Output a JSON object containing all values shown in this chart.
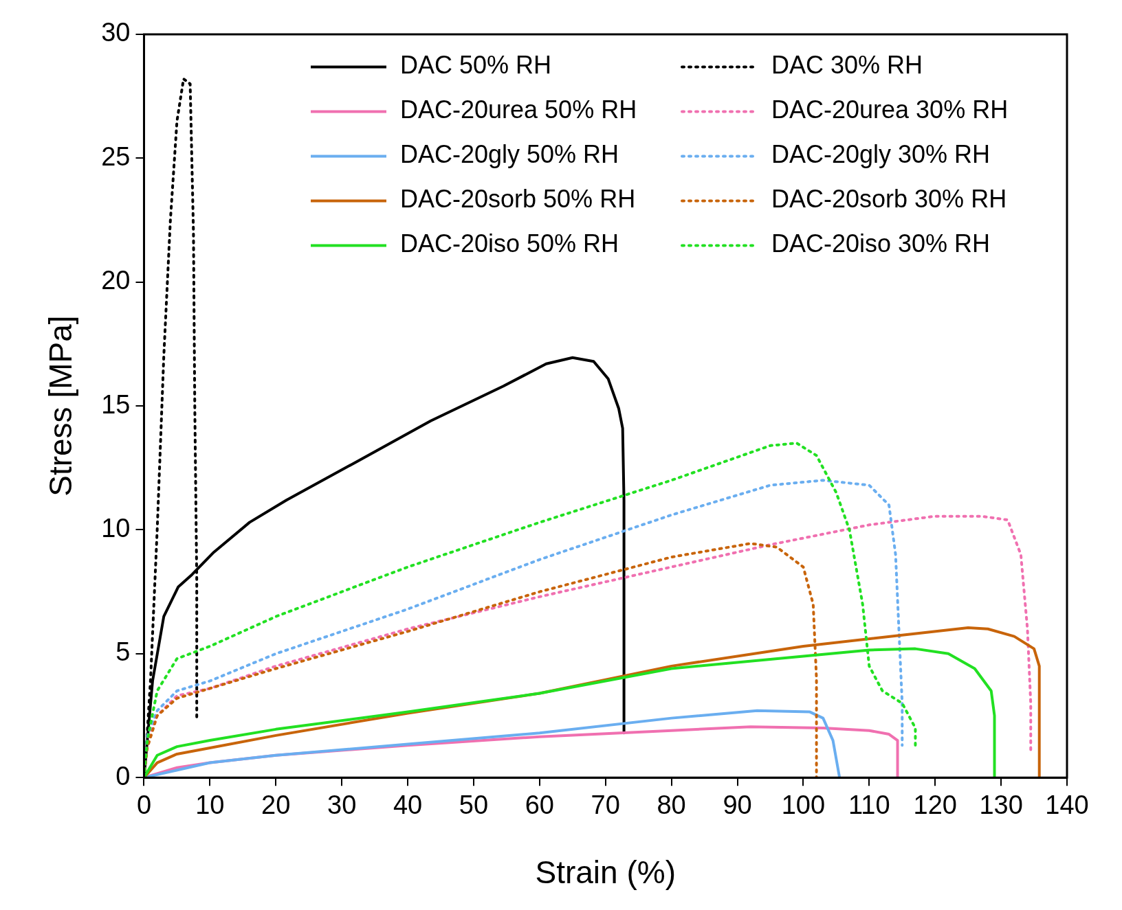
{
  "chart_data": {
    "type": "line",
    "xlabel": "Strain (%)",
    "ylabel": "Stress [MPa]",
    "xlim": [
      0,
      140
    ],
    "xticks": [
      0,
      10,
      20,
      30,
      40,
      50,
      60,
      70,
      80,
      90,
      100,
      110,
      120,
      130,
      140
    ],
    "ylim": [
      0,
      30
    ],
    "yticks": [
      0,
      5,
      10,
      15,
      20,
      25,
      30
    ],
    "grid": false,
    "legend": "top right",
    "marker": "none",
    "series": [
      {
        "name": "DAC 50% RH",
        "color": "#000000",
        "line_style": "solid",
        "x": [
          0,
          0.5,
          1.3,
          3,
          5.2,
          7.3,
          10.6,
          16,
          21.6,
          32.6,
          43.5,
          54.5,
          61,
          65,
          68.2,
          70.4,
          72,
          72.6,
          72.8,
          72.8
        ],
        "values": [
          0,
          1.5,
          3.9,
          6.5,
          7.7,
          8.2,
          9.1,
          10.3,
          11.2,
          12.8,
          14.4,
          15.8,
          16.7,
          16.95,
          16.8,
          16.1,
          14.9,
          14.1,
          11.2,
          1.8
        ]
      },
      {
        "name": "DAC 30% RH",
        "color": "#000000",
        "line_style": "dotted",
        "x": [
          0,
          0.3,
          1,
          2,
          3,
          4,
          5,
          6,
          7,
          7.5,
          7.7,
          8,
          8
        ],
        "values": [
          0,
          1,
          4,
          10,
          17,
          22.5,
          26.5,
          28.2,
          28,
          22,
          15,
          8,
          2.3
        ]
      },
      {
        "name": "DAC-20urea 50% RH",
        "color": "#f070b0",
        "line_style": "solid",
        "x": [
          0,
          5,
          10,
          20,
          40,
          60,
          80,
          92,
          103,
          110,
          113,
          114.3,
          114.3
        ],
        "values": [
          0,
          0.4,
          0.6,
          0.9,
          1.3,
          1.65,
          1.9,
          2.05,
          2,
          1.9,
          1.75,
          1.5,
          0
        ]
      },
      {
        "name": "DAC-20urea 30% RH",
        "color": "#f070b0",
        "line_style": "dotted",
        "x": [
          0,
          0.5,
          2,
          5,
          10,
          20,
          40,
          60,
          80,
          95,
          110,
          120,
          127,
          131,
          133,
          134,
          134.5,
          134.5
        ],
        "values": [
          0,
          1.5,
          2.5,
          3.3,
          3.6,
          4.5,
          6,
          7.3,
          8.5,
          9.4,
          10.2,
          10.55,
          10.55,
          10.4,
          9,
          6,
          3,
          1.1
        ]
      },
      {
        "name": "DAC-20gly 50% RH",
        "color": "#6aaef0",
        "line_style": "solid",
        "x": [
          0,
          10,
          20,
          40,
          60,
          80,
          93,
          101,
          103,
          104.5,
          105.5
        ],
        "values": [
          0,
          0.6,
          0.9,
          1.35,
          1.8,
          2.4,
          2.7,
          2.65,
          2.4,
          1.5,
          0
        ]
      },
      {
        "name": "DAC-20gly 30% RH",
        "color": "#6aaef0",
        "line_style": "dotted",
        "x": [
          0,
          0.5,
          2,
          5,
          10,
          20,
          40,
          60,
          80,
          95,
          103,
          110,
          113,
          114,
          114.5,
          115,
          115
        ],
        "values": [
          0,
          1.7,
          2.7,
          3.5,
          3.9,
          5,
          6.8,
          8.8,
          10.6,
          11.8,
          12,
          11.8,
          11,
          9,
          6,
          3,
          1.3
        ]
      },
      {
        "name": "DAC-20sorb 50% RH",
        "color": "#c8640a",
        "line_style": "solid",
        "x": [
          0,
          2,
          5,
          10,
          20,
          40,
          60,
          80,
          100,
          115,
          125,
          128,
          132,
          135,
          135.8,
          135.8
        ],
        "values": [
          0,
          0.6,
          0.95,
          1.2,
          1.7,
          2.6,
          3.4,
          4.5,
          5.3,
          5.75,
          6.05,
          6,
          5.7,
          5.2,
          4.5,
          0
        ]
      },
      {
        "name": "DAC-20sorb 30% RH",
        "color": "#c8640a",
        "line_style": "dotted",
        "x": [
          0,
          0.5,
          2,
          5,
          10,
          20,
          40,
          60,
          80,
          92,
          96,
          100,
          101.5,
          102,
          102
        ],
        "values": [
          0,
          1.2,
          2.5,
          3.2,
          3.6,
          4.4,
          5.9,
          7.5,
          8.9,
          9.45,
          9.3,
          8.5,
          7,
          4,
          0
        ]
      },
      {
        "name": "DAC-20iso 50% RH",
        "color": "#22e022",
        "line_style": "solid",
        "x": [
          0,
          2,
          5,
          10,
          20,
          40,
          60,
          80,
          100,
          110,
          117,
          122,
          126,
          128.5,
          129,
          129
        ],
        "values": [
          0,
          0.9,
          1.25,
          1.5,
          1.95,
          2.65,
          3.4,
          4.4,
          4.9,
          5.15,
          5.2,
          5,
          4.4,
          3.5,
          2.5,
          0
        ]
      },
      {
        "name": "DAC-20iso 30% RH",
        "color": "#22e022",
        "line_style": "dotted",
        "x": [
          0,
          0.5,
          2,
          5,
          10,
          20,
          40,
          60,
          80,
          95,
          99,
          102,
          105,
          107,
          109,
          110,
          112,
          115,
          117,
          117
        ],
        "values": [
          0,
          1.5,
          3.5,
          4.8,
          5.3,
          6.5,
          8.5,
          10.3,
          12,
          13.4,
          13.5,
          13,
          11.5,
          10,
          7,
          4.5,
          3.5,
          3,
          2,
          1.2
        ]
      }
    ]
  }
}
